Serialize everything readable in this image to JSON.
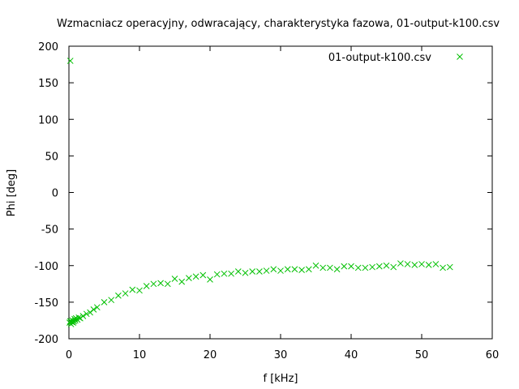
{
  "chart_data": {
    "type": "scatter",
    "title": "Wzmacniacz operacyjny, odwracający, charakterystyka fazowa, 01-output-k100.csv",
    "xlabel": "f [kHz]",
    "ylabel": "Phi [deg]",
    "xlim": [
      0,
      60
    ],
    "ylim": [
      -200,
      200
    ],
    "xticks": [
      0,
      10,
      20,
      30,
      40,
      50,
      60
    ],
    "yticks": [
      -200,
      -150,
      -100,
      -50,
      0,
      50,
      100,
      150,
      200
    ],
    "grid": false,
    "legend_position": "top-right",
    "series": [
      {
        "name": "01-output-k100.csv",
        "color": "#00c000",
        "marker": "x",
        "points": [
          [
            0.2,
            180
          ],
          [
            0.1,
            -178
          ],
          [
            0.2,
            -176
          ],
          [
            0.3,
            -180
          ],
          [
            0.4,
            -177
          ],
          [
            0.5,
            -175
          ],
          [
            0.6,
            -178
          ],
          [
            0.7,
            -176
          ],
          [
            0.8,
            -173
          ],
          [
            0.9,
            -175
          ],
          [
            1.0,
            -172
          ],
          [
            1.2,
            -174
          ],
          [
            1.4,
            -171
          ],
          [
            1.6,
            -172
          ],
          [
            2.0,
            -169
          ],
          [
            2.5,
            -166
          ],
          [
            3.0,
            -164
          ],
          [
            3.5,
            -160
          ],
          [
            4.0,
            -157
          ],
          [
            5.0,
            -150
          ],
          [
            6.0,
            -147
          ],
          [
            7.0,
            -141
          ],
          [
            8.0,
            -138
          ],
          [
            9.0,
            -133
          ],
          [
            10.0,
            -134
          ],
          [
            11.0,
            -128
          ],
          [
            12.0,
            -125
          ],
          [
            13.0,
            -124
          ],
          [
            14.0,
            -125
          ],
          [
            15.0,
            -118
          ],
          [
            16.0,
            -122
          ],
          [
            17.0,
            -117
          ],
          [
            18.0,
            -115
          ],
          [
            19.0,
            -113
          ],
          [
            20.0,
            -119
          ],
          [
            21.0,
            -112
          ],
          [
            22.0,
            -111
          ],
          [
            23.0,
            -111
          ],
          [
            24.0,
            -108
          ],
          [
            25.0,
            -110
          ],
          [
            26.0,
            -108
          ],
          [
            27.0,
            -108
          ],
          [
            28.0,
            -107
          ],
          [
            29.0,
            -105
          ],
          [
            30.0,
            -107
          ],
          [
            31.0,
            -105
          ],
          [
            32.0,
            -105
          ],
          [
            33.0,
            -106
          ],
          [
            34.0,
            -105
          ],
          [
            35.0,
            -100
          ],
          [
            36.0,
            -103
          ],
          [
            37.0,
            -103
          ],
          [
            38.0,
            -105
          ],
          [
            39.0,
            -101
          ],
          [
            40.0,
            -101
          ],
          [
            41.0,
            -103
          ],
          [
            42.0,
            -103
          ],
          [
            43.0,
            -102
          ],
          [
            44.0,
            -101
          ],
          [
            45.0,
            -100
          ],
          [
            46.0,
            -102
          ],
          [
            47.0,
            -97
          ],
          [
            48.0,
            -98
          ],
          [
            49.0,
            -99
          ],
          [
            50.0,
            -98
          ],
          [
            51.0,
            -99
          ],
          [
            52.0,
            -98
          ],
          [
            53.0,
            -103
          ],
          [
            54.0,
            -102
          ]
        ]
      }
    ]
  }
}
